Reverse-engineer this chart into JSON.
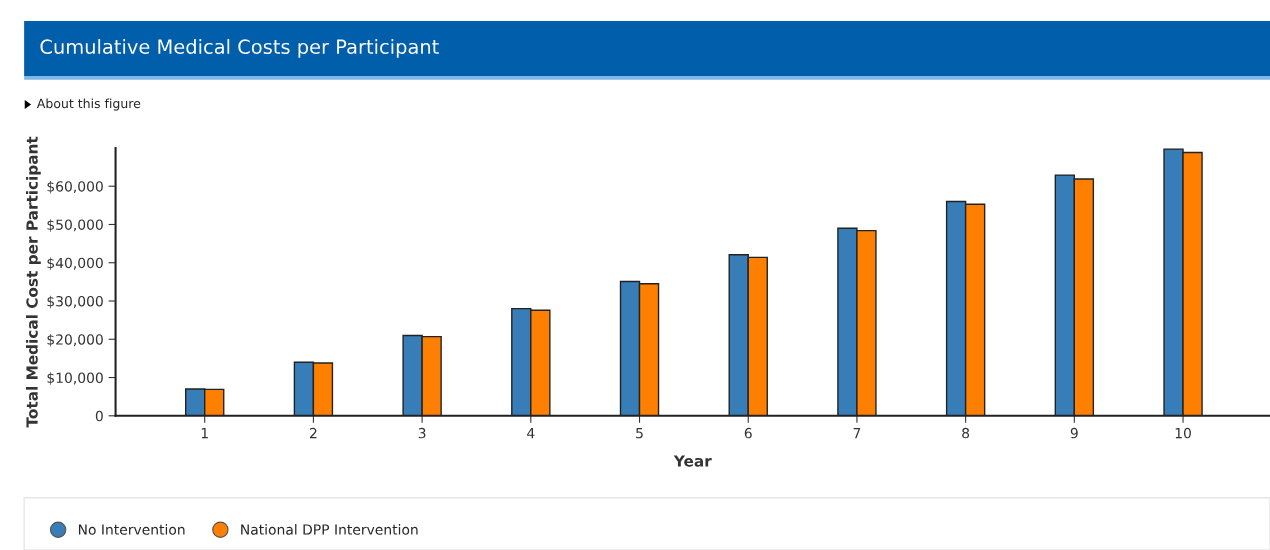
{
  "chart_data": {
    "type": "bar",
    "title": "Cumulative Medical Costs per Participant",
    "xlabel": "Year",
    "ylabel": "Total Medical Cost per Participant",
    "annotations": [
      "About this figure"
    ],
    "categories": [
      "1",
      "2",
      "3",
      "4",
      "5",
      "6",
      "7",
      "8",
      "9",
      "10"
    ],
    "series": [
      {
        "name": "No Intervention",
        "color": "#377eb8",
        "values": [
          7000,
          14000,
          21000,
          28000,
          35100,
          42100,
          49000,
          56000,
          62900,
          69700
        ]
      },
      {
        "name": "National DPP Intervention",
        "color": "#ff7f00",
        "values": [
          6900,
          13800,
          20700,
          27600,
          34500,
          41400,
          48400,
          55300,
          61900,
          68800
        ]
      }
    ],
    "ylim": [
      0,
      70000
    ],
    "yticks": [
      0,
      {
        "value": 10000,
        "label": "$10,000"
      },
      {
        "value": 20000,
        "label": "$20,000"
      },
      {
        "value": 30000,
        "label": "$30,000"
      },
      {
        "value": 40000,
        "label": "$40,000"
      },
      {
        "value": 50000,
        "label": "$50,000"
      },
      {
        "value": 60000,
        "label": "$60,000"
      }
    ],
    "grid": false,
    "legend": "bottom"
  }
}
